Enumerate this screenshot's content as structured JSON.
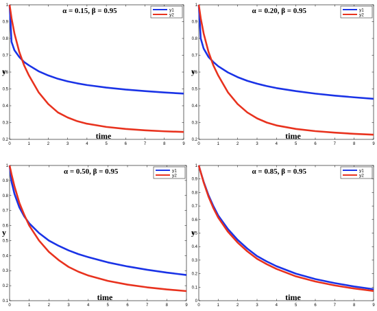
{
  "chart_data": [
    {
      "type": "line",
      "title": "α = 0.15, β = 0.95",
      "xlabel": "time",
      "ylabel": "y",
      "xlim": [
        0,
        9
      ],
      "ylim": [
        0.2,
        1.0
      ],
      "xticks": [
        "0",
        "1",
        "2",
        "3",
        "4",
        "5",
        "6",
        "7",
        "8",
        "9"
      ],
      "yticks": [
        "0.2",
        "0.3",
        "0.4",
        "0.5",
        "0.6",
        "0.7",
        "0.8",
        "0.9",
        "1"
      ],
      "legend_position": "top-right",
      "x": [
        0,
        0.1,
        0.25,
        0.5,
        0.75,
        1,
        1.5,
        2,
        2.5,
        3,
        3.5,
        4,
        5,
        6,
        7,
        8,
        9
      ],
      "series": [
        {
          "name": "y1",
          "color": "#1a33e6",
          "values": [
            1.0,
            0.78,
            0.73,
            0.69,
            0.66,
            0.64,
            0.605,
            0.58,
            0.56,
            0.545,
            0.533,
            0.523,
            0.508,
            0.496,
            0.487,
            0.479,
            0.472
          ]
        },
        {
          "name": "y2",
          "color": "#e8321e",
          "values": [
            1.0,
            0.92,
            0.83,
            0.72,
            0.64,
            0.58,
            0.48,
            0.41,
            0.36,
            0.33,
            0.308,
            0.293,
            0.274,
            0.262,
            0.254,
            0.248,
            0.244
          ]
        }
      ]
    },
    {
      "type": "line",
      "title": "α = 0.20, β = 0.95",
      "xlabel": "time",
      "ylabel": "y",
      "xlim": [
        0,
        9
      ],
      "ylim": [
        0.2,
        1.0
      ],
      "xticks": [
        "0",
        "1",
        "2",
        "3",
        "4",
        "5",
        "6",
        "7",
        "8",
        "9"
      ],
      "yticks": [
        "0.2",
        "0.3",
        "0.4",
        "0.5",
        "0.6",
        "0.7",
        "0.8",
        "0.9",
        "1"
      ],
      "legend_position": "top-right",
      "x": [
        0,
        0.1,
        0.25,
        0.5,
        0.75,
        1,
        1.5,
        2,
        2.5,
        3,
        3.5,
        4,
        5,
        6,
        7,
        8,
        9
      ],
      "series": [
        {
          "name": "y1",
          "color": "#1a33e6",
          "values": [
            1.0,
            0.8,
            0.74,
            0.69,
            0.66,
            0.635,
            0.598,
            0.57,
            0.548,
            0.531,
            0.517,
            0.505,
            0.487,
            0.472,
            0.46,
            0.45,
            0.441
          ]
        },
        {
          "name": "y2",
          "color": "#e8321e",
          "values": [
            1.0,
            0.92,
            0.83,
            0.72,
            0.64,
            0.58,
            0.48,
            0.41,
            0.36,
            0.325,
            0.3,
            0.283,
            0.262,
            0.249,
            0.24,
            0.233,
            0.228
          ]
        }
      ]
    },
    {
      "type": "line",
      "title": "α = 0.50, β = 0.95",
      "xlabel": "time",
      "ylabel": "y",
      "xlim": [
        0,
        9
      ],
      "ylim": [
        0.1,
        1.0
      ],
      "xticks": [
        "0",
        "1",
        "2",
        "3",
        "4",
        "5",
        "6",
        "7",
        "8",
        "9"
      ],
      "yticks": [
        "0.1",
        "0.2",
        "0.3",
        "0.4",
        "0.5",
        "0.6",
        "0.7",
        "0.8",
        "0.9",
        "1"
      ],
      "legend_position": "top-right",
      "x": [
        0,
        0.1,
        0.25,
        0.5,
        0.75,
        1,
        1.5,
        2,
        2.5,
        3,
        3.5,
        4,
        5,
        6,
        7,
        8,
        9
      ],
      "series": [
        {
          "name": "y1",
          "color": "#1a33e6",
          "values": [
            1.0,
            0.89,
            0.81,
            0.72,
            0.66,
            0.615,
            0.55,
            0.5,
            0.465,
            0.435,
            0.41,
            0.39,
            0.355,
            0.328,
            0.306,
            0.287,
            0.271
          ]
        },
        {
          "name": "y2",
          "color": "#e8321e",
          "values": [
            1.0,
            0.94,
            0.86,
            0.75,
            0.67,
            0.6,
            0.5,
            0.425,
            0.37,
            0.325,
            0.293,
            0.268,
            0.232,
            0.207,
            0.189,
            0.175,
            0.164
          ]
        }
      ]
    },
    {
      "type": "line",
      "title": "α = 0.85, β = 0.95",
      "xlabel": "time",
      "ylabel": "y",
      "xlim": [
        0,
        9
      ],
      "ylim": [
        0.0,
        1.0
      ],
      "xticks": [
        "0",
        "1",
        "2",
        "3",
        "4",
        "5",
        "6",
        "7",
        "8",
        "9"
      ],
      "yticks": [
        "0",
        "0.1",
        "0.2",
        "0.3",
        "0.4",
        "0.5",
        "0.6",
        "0.7",
        "0.8",
        "0.9",
        "1"
      ],
      "legend_position": "top-right",
      "x": [
        0,
        0.1,
        0.25,
        0.5,
        0.75,
        1,
        1.5,
        2,
        2.5,
        3,
        3.5,
        4,
        5,
        6,
        7,
        8,
        9
      ],
      "series": [
        {
          "name": "y1",
          "color": "#1a33e6",
          "values": [
            1.0,
            0.95,
            0.88,
            0.78,
            0.7,
            0.63,
            0.53,
            0.45,
            0.385,
            0.33,
            0.29,
            0.255,
            0.2,
            0.16,
            0.13,
            0.105,
            0.085
          ]
        },
        {
          "name": "y2",
          "color": "#e8321e",
          "values": [
            1.0,
            0.95,
            0.875,
            0.77,
            0.685,
            0.615,
            0.51,
            0.43,
            0.365,
            0.31,
            0.27,
            0.235,
            0.18,
            0.142,
            0.113,
            0.09,
            0.072
          ]
        }
      ]
    }
  ]
}
